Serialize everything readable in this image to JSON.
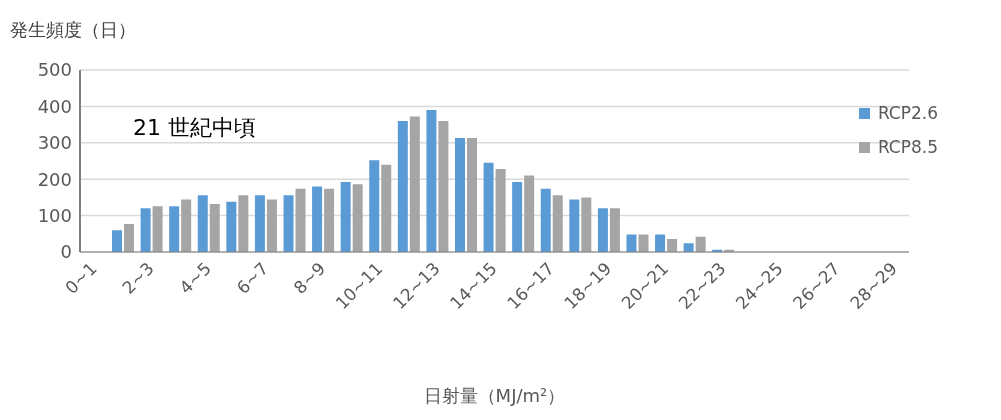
{
  "chart_data": {
    "type": "bar",
    "ylabel": "発生頻度（日）",
    "xlabel": "日射量（MJ/m²）",
    "annotations": [
      "21 世紀中頃"
    ],
    "categories": [
      "0~1",
      null,
      "2~3",
      null,
      "4~5",
      null,
      "6~7",
      null,
      "8~9",
      null,
      "10~11",
      null,
      "12~13",
      null,
      "14~15",
      null,
      "16~17",
      null,
      "18~19",
      null,
      "20~21",
      null,
      "22~23",
      null,
      "24~25",
      null,
      "26~27",
      null,
      "28~29"
    ],
    "series": [
      {
        "name": "RCP2.6",
        "color": "#5b9bd5",
        "values": [
          0,
          60,
          120,
          126,
          156,
          138,
          156,
          156,
          180,
          192,
          252,
          360,
          390,
          313,
          245,
          192,
          174,
          144,
          120,
          48,
          48,
          24,
          6,
          0,
          0,
          0,
          0,
          0,
          0
        ]
      },
      {
        "name": "RCP8.5",
        "color": "#a5a5a5",
        "values": [
          0,
          77,
          126,
          144,
          132,
          156,
          144,
          174,
          174,
          186,
          240,
          372,
          360,
          313,
          228,
          210,
          156,
          150,
          120,
          48,
          36,
          42,
          6,
          0,
          0,
          0,
          0,
          0,
          0
        ]
      }
    ],
    "ylim": [
      0,
      500
    ],
    "yticks": [
      0,
      100,
      200,
      300,
      400,
      500
    ],
    "grid": "y",
    "legend": "right"
  }
}
